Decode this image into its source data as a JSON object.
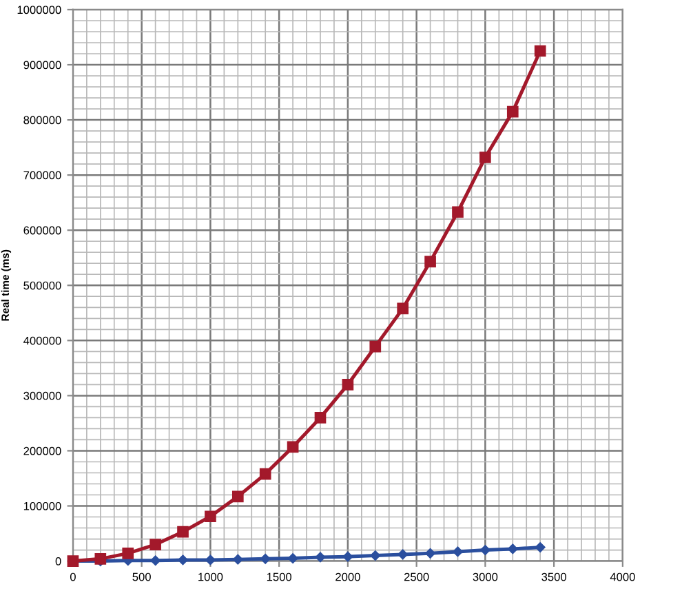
{
  "chart_data": {
    "type": "line",
    "ylabel": "Real time (ms)",
    "x": [
      0,
      200,
      400,
      600,
      800,
      1000,
      1200,
      1400,
      1600,
      1800,
      2000,
      2200,
      2400,
      2600,
      2800,
      3000,
      3200,
      3400
    ],
    "series": [
      {
        "color": "#2b4f9e",
        "marker": "diamond",
        "values": [
          0,
          0,
          1000,
          1000,
          2000,
          2000,
          3000,
          4000,
          5000,
          7000,
          8000,
          10000,
          12000,
          14000,
          17000,
          20000,
          22000,
          25000
        ]
      },
      {
        "color": "#a3192b",
        "marker": "square",
        "values": [
          0,
          4000,
          14000,
          30000,
          53000,
          81000,
          117000,
          158000,
          207000,
          260000,
          320000,
          389000,
          458000,
          543000,
          633000,
          732000,
          815000,
          925000
        ]
      }
    ],
    "xlim": [
      0,
      4000
    ],
    "xticks": [
      0,
      500,
      1000,
      1500,
      2000,
      2500,
      3000,
      3500,
      4000
    ],
    "ylim": [
      0,
      1000000
    ],
    "yticks": [
      0,
      100000,
      200000,
      300000,
      400000,
      500000,
      600000,
      700000,
      800000,
      900000,
      1000000
    ],
    "grid": true,
    "line_style": "solid"
  }
}
